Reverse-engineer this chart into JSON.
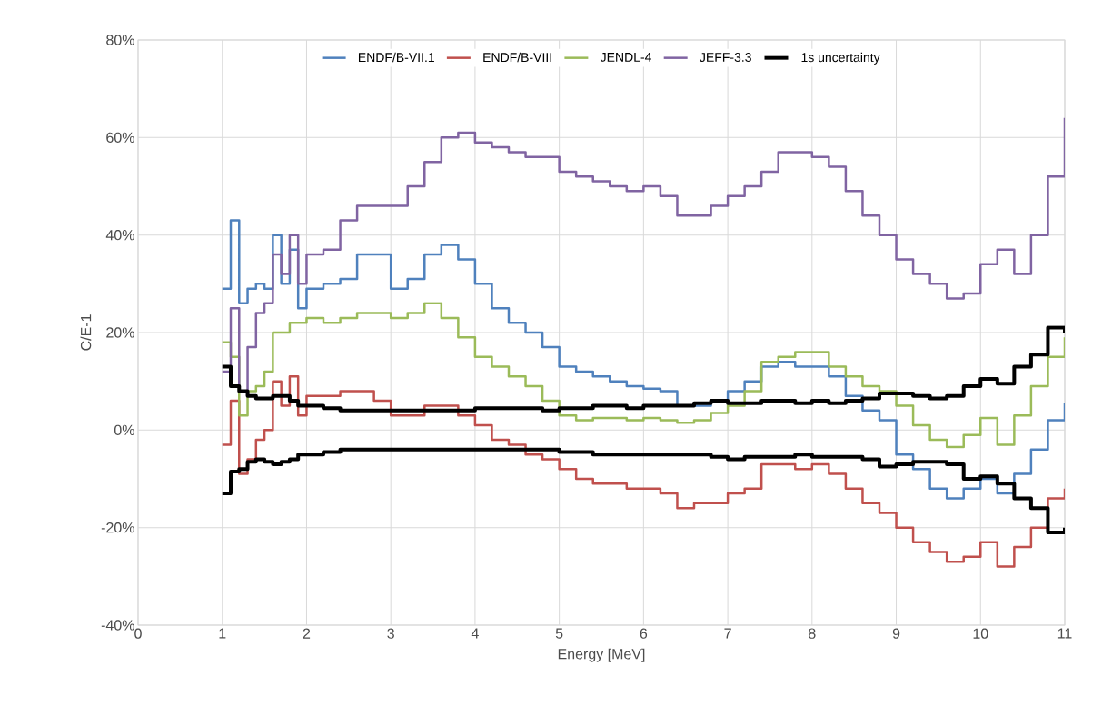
{
  "chart_data": {
    "type": "step",
    "xlabel": "Energy [MeV]",
    "ylabel": "C/E-1",
    "x": [
      1,
      1.1,
      1.2,
      1.3,
      1.4,
      1.5,
      1.6,
      1.7,
      1.8,
      1.9,
      2.0,
      2.2,
      2.4,
      2.6,
      2.8,
      3.0,
      3.2,
      3.4,
      3.6,
      3.8,
      4.0,
      4.2,
      4.4,
      4.6,
      4.8,
      5.0,
      5.2,
      5.4,
      5.6,
      5.8,
      6.0,
      6.2,
      6.4,
      6.6,
      6.8,
      7.0,
      7.2,
      7.4,
      7.6,
      7.8,
      8.0,
      8.2,
      8.4,
      8.6,
      8.8,
      9.0,
      9.2,
      9.4,
      9.6,
      9.8,
      10.0,
      10.2,
      10.4,
      10.6,
      10.8,
      11.0
    ],
    "series": [
      {
        "name": "ENDF/B-VII.1",
        "color": "#4f81bd",
        "values": [
          29,
          43,
          26,
          29,
          30,
          29,
          40,
          30,
          37,
          25,
          29,
          30,
          31,
          36,
          36,
          29,
          31,
          36,
          38,
          35,
          30,
          25,
          22,
          20,
          17,
          13,
          12,
          11,
          10,
          9,
          8.5,
          8,
          5,
          5,
          6,
          8,
          10,
          13,
          14,
          13,
          13,
          11,
          7,
          4,
          2,
          -5,
          -8,
          -12,
          -14,
          -12,
          -10,
          -13,
          -9,
          -4,
          2,
          5.5
        ]
      },
      {
        "name": "ENDF/B-VIII",
        "color": "#c0504d",
        "values": [
          -3,
          6,
          -9,
          -6,
          -2,
          0,
          10,
          5,
          11,
          3,
          7,
          7,
          8,
          8,
          6,
          3,
          3,
          5,
          5,
          3,
          1,
          -2,
          -3,
          -5,
          -6,
          -8,
          -10,
          -11,
          -11,
          -12,
          -12,
          -13,
          -16,
          -15,
          -15,
          -13,
          -12,
          -7,
          -7,
          -8,
          -7,
          -9,
          -12,
          -15,
          -17,
          -20,
          -23,
          -25,
          -27,
          -26,
          -23,
          -28,
          -24,
          -20,
          -14,
          -12
        ]
      },
      {
        "name": "JENDL-4",
        "color": "#9bbb59",
        "values": [
          18,
          15,
          3,
          8,
          9,
          12,
          20,
          20,
          22,
          22,
          23,
          22,
          23,
          24,
          24,
          23,
          24,
          26,
          23,
          19,
          15,
          13,
          11,
          9,
          6,
          3,
          2,
          2.5,
          2.5,
          2,
          2.5,
          2,
          1.5,
          2,
          3.5,
          5,
          8,
          14,
          15,
          16,
          16,
          13,
          11,
          9,
          8,
          5,
          1,
          -2,
          -3.5,
          -1,
          2.5,
          -3,
          3,
          9,
          15,
          19
        ]
      },
      {
        "name": "JEFF-3.3",
        "color": "#8064a2",
        "values": [
          12,
          25,
          8,
          17,
          24,
          26,
          36,
          32,
          40,
          30,
          36,
          37,
          43,
          46,
          46,
          46,
          50,
          55,
          60,
          61,
          59,
          58,
          57,
          56,
          56,
          53,
          52,
          51,
          50,
          49,
          50,
          48,
          44,
          44,
          46,
          48,
          50,
          53,
          57,
          57,
          56,
          54,
          49,
          44,
          40,
          35,
          32,
          30,
          27,
          28,
          34,
          37,
          32,
          40,
          52,
          64
        ]
      },
      {
        "name": "1s uncertainty",
        "color": "#000000",
        "values": [
          13,
          9,
          8,
          7,
          6.5,
          6.5,
          7,
          7,
          6,
          5,
          5,
          4.5,
          4,
          4,
          4,
          4,
          4,
          4,
          4,
          4,
          4.5,
          4.5,
          4.5,
          4.5,
          4,
          4.5,
          4.5,
          5,
          5,
          4.5,
          5,
          5,
          5,
          5.5,
          6,
          5.5,
          5.5,
          6,
          6,
          5.5,
          6,
          5.5,
          6,
          6.5,
          7.5,
          7.5,
          7,
          6.5,
          7,
          9,
          10.5,
          9.5,
          13,
          15.5,
          21,
          20
        ]
      },
      {
        "color": "#000000",
        "values": [
          -13,
          -8.5,
          -8,
          -6.5,
          -6,
          -6.5,
          -7,
          -6.5,
          -6,
          -5,
          -5,
          -4.5,
          -4,
          -4,
          -4,
          -4,
          -4,
          -4,
          -4,
          -4,
          -4,
          -4,
          -4,
          -4,
          -4,
          -4.5,
          -4.5,
          -5,
          -5,
          -5,
          -5,
          -5,
          -5,
          -5,
          -5.5,
          -6,
          -5.5,
          -5.5,
          -5.5,
          -5,
          -5.5,
          -5.5,
          -5.5,
          -6,
          -7.5,
          -7,
          -6.5,
          -6.5,
          -7,
          -10,
          -9.5,
          -11,
          -14,
          -16,
          -21,
          -20
        ]
      }
    ],
    "xlim": [
      0,
      11
    ],
    "xticks": [
      0,
      1,
      2,
      3,
      4,
      5,
      6,
      7,
      8,
      9,
      10,
      11
    ],
    "ylim": [
      -40,
      80
    ],
    "yticks": [
      {
        "value": -40,
        "label": "-40%"
      },
      {
        "value": -20,
        "label": "-20%"
      },
      {
        "value": 0,
        "label": "0%"
      },
      {
        "value": 20,
        "label": "20%"
      },
      {
        "value": 40,
        "label": "40%"
      },
      {
        "value": 60,
        "label": "60%"
      },
      {
        "value": 80,
        "label": "80%"
      }
    ],
    "grid": true,
    "legend": "top"
  }
}
